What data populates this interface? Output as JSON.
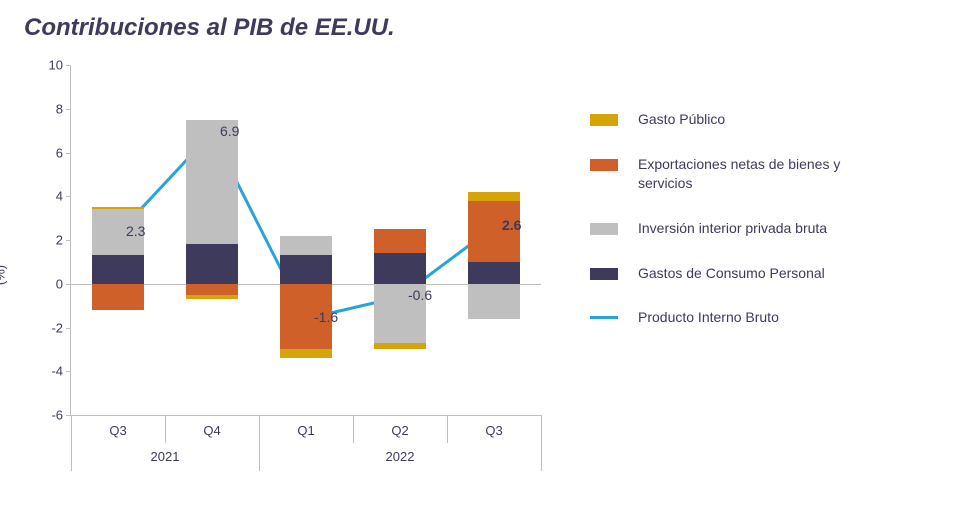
{
  "title": "Contribuciones al PIB de EE.UU.",
  "y_axis_label": "(%)",
  "chart": {
    "type": "stacked-bar-with-line",
    "ylim": [
      -6,
      10
    ],
    "ytick_step": 2,
    "yticks": [
      -6,
      -4,
      -2,
      0,
      2,
      4,
      6,
      8,
      10
    ],
    "background_color": "#ffffff",
    "axis_color": "#bfbfbf",
    "zero_line_color": "#bfbfbf",
    "bar_width_ratio": 0.55,
    "text_color": "#3d3a5c",
    "title_fontsize": 24,
    "title_fontweight": "bold",
    "title_fontstyle": "italic",
    "tick_fontsize": 13,
    "legend_fontsize": 14,
    "line_width": 3,
    "marker_size": 5,
    "categories": [
      {
        "q": "Q3",
        "year": "2021"
      },
      {
        "q": "Q4",
        "year": "2021"
      },
      {
        "q": "Q1",
        "year": "2022"
      },
      {
        "q": "Q2",
        "year": "2022"
      },
      {
        "q": "Q3",
        "year": "2022"
      }
    ],
    "year_groups": [
      {
        "label": "2021",
        "start": 0,
        "end": 1
      },
      {
        "label": "2022",
        "start": 2,
        "end": 4
      }
    ],
    "series_order_pos": [
      "consumo",
      "inversion",
      "export",
      "gasto"
    ],
    "series_order_neg": [
      "consumo",
      "inversion",
      "export",
      "gasto"
    ],
    "series": {
      "gasto": {
        "label": "Gasto Público",
        "color": "#d4a408",
        "values": [
          0.1,
          -0.2,
          -0.4,
          -0.3,
          0.4
        ]
      },
      "export": {
        "label": "Exportaciones netas de bienes y servicios",
        "color": "#cf6029",
        "values": [
          -1.2,
          -0.5,
          -3.0,
          1.1,
          2.8
        ]
      },
      "inversion": {
        "label": "Inversión interior privada bruta",
        "color": "#bfbfbf",
        "values": [
          2.1,
          5.7,
          0.9,
          -2.7,
          -1.6
        ]
      },
      "consumo": {
        "label": "Gastos de Consumo Personal",
        "color": "#3d3a5c",
        "values": [
          1.3,
          1.8,
          1.3,
          1.4,
          1.0
        ]
      }
    },
    "line": {
      "label": "Producto Interno Bruto",
      "color": "#29a3d9",
      "values": [
        2.3,
        6.9,
        -1.6,
        -0.6,
        2.6
      ],
      "data_labels": [
        "2.3",
        "6.9",
        "-1.6",
        "-0.6",
        "2.6"
      ],
      "bold_last": true
    },
    "legend_order": [
      "gasto",
      "export",
      "inversion",
      "consumo",
      "__line__"
    ]
  }
}
